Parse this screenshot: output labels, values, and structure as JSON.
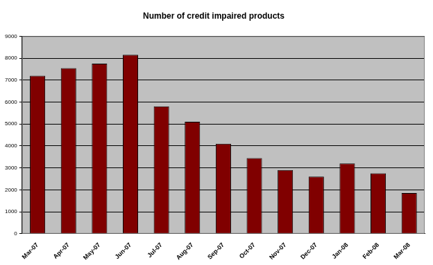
{
  "chart_data": {
    "type": "bar",
    "title": "Number of credit impaired products",
    "categories": [
      "Mar-07",
      "Apr-07",
      "May-07",
      "Jun-07",
      "Jul-07",
      "Aug-07",
      "Sep-07",
      "Oct-07",
      "Nov-07",
      "Dec-07",
      "Jan-08",
      "Feb-08",
      "Mar-08"
    ],
    "values": [
      7200,
      7550,
      7750,
      8150,
      5800,
      5100,
      4100,
      3450,
      2900,
      2600,
      3200,
      2750,
      1850
    ],
    "color": "#800000",
    "ylim": [
      0,
      9000
    ],
    "yticks": [
      0,
      1000,
      2000,
      3000,
      4000,
      5000,
      6000,
      7000,
      8000,
      9000
    ],
    "grid": true
  }
}
